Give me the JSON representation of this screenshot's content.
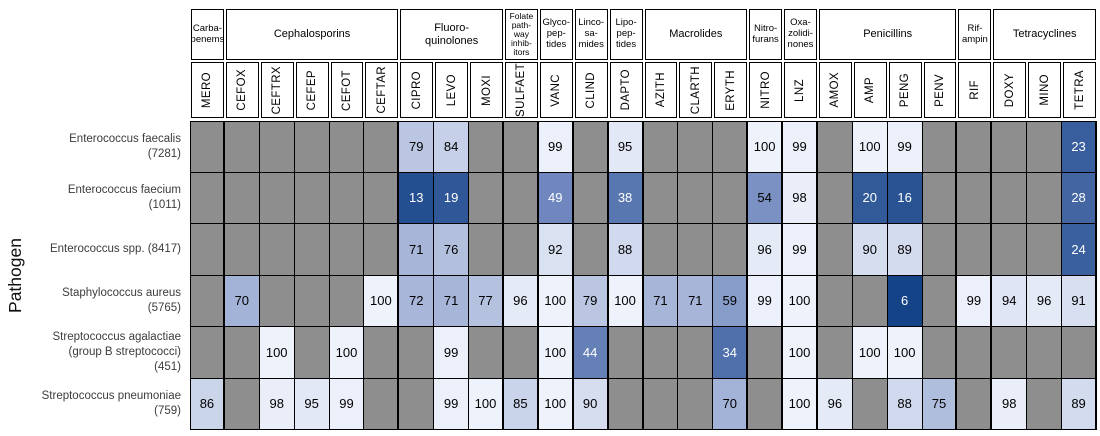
{
  "axis": {
    "y_title": "Pathogen"
  },
  "colors": {
    "no_data": "#8e8e8e",
    "border": "#000000",
    "scale_at_0": "#083a80",
    "scale_at_50": "#7189bf",
    "scale_at_100": "#eef2fb",
    "text_dark": "#000000",
    "text_light": "#ffffff"
  },
  "chart_data": {
    "type": "heatmap",
    "title": "",
    "ylabel": "Pathogen",
    "value_range": [
      0,
      100
    ],
    "legend": "none",
    "col_groups": [
      {
        "lines": [
          "Carba-",
          "penems"
        ],
        "span": 1
      },
      {
        "lines": [
          "Cephalosporins"
        ],
        "span": 5
      },
      {
        "lines": [
          "Fluoro-",
          "quinolones"
        ],
        "span": 3
      },
      {
        "lines": [
          "Folate",
          "path-",
          "way",
          "inhib-",
          "itors"
        ],
        "span": 1
      },
      {
        "lines": [
          "Glyco-",
          "pep-",
          "tides"
        ],
        "span": 1
      },
      {
        "lines": [
          "Linco-",
          "sa-",
          "mides"
        ],
        "span": 1
      },
      {
        "lines": [
          "Lipo-",
          "pep-",
          "tides"
        ],
        "span": 1
      },
      {
        "lines": [
          "Macrolides"
        ],
        "span": 3
      },
      {
        "lines": [
          "Nitro-",
          "furans"
        ],
        "span": 1
      },
      {
        "lines": [
          "Oxa-",
          "zolidi-",
          "nones"
        ],
        "span": 1
      },
      {
        "lines": [
          "Penicillins"
        ],
        "span": 4
      },
      {
        "lines": [
          "Rif-",
          "ampin"
        ],
        "span": 1
      },
      {
        "lines": [
          "Tetracyclines"
        ],
        "span": 3
      }
    ],
    "columns": [
      "MERO",
      "CEFOX",
      "CEFTRX",
      "CEFEP",
      "CEFOT",
      "CEFTAR",
      "CIPRO",
      "LEVO",
      "MOXI",
      "SULFAET",
      "VANC",
      "CLIND",
      "DAPTO",
      "AZITH",
      "CLARTH",
      "ERYTH",
      "NITRO",
      "LNZ",
      "AMOX",
      "AMP",
      "PENG",
      "PENV",
      "RIF",
      "DOXY",
      "MINO",
      "TETRA"
    ],
    "rows": [
      {
        "label_lines": [
          "Enterococcus faecalis",
          "(7281)"
        ],
        "values": [
          null,
          null,
          null,
          null,
          null,
          null,
          79,
          84,
          null,
          null,
          99,
          null,
          95,
          null,
          null,
          null,
          100,
          99,
          null,
          100,
          99,
          null,
          null,
          null,
          null,
          23
        ]
      },
      {
        "label_lines": [
          "Enterococcus faecium",
          "(1011)"
        ],
        "values": [
          null,
          null,
          null,
          null,
          null,
          null,
          13,
          19,
          null,
          null,
          49,
          null,
          38,
          null,
          null,
          null,
          54,
          98,
          null,
          20,
          16,
          null,
          null,
          null,
          null,
          28
        ]
      },
      {
        "label_lines": [
          "Enterococcus spp. (8417)"
        ],
        "values": [
          null,
          null,
          null,
          null,
          null,
          null,
          71,
          76,
          null,
          null,
          92,
          null,
          88,
          null,
          null,
          null,
          96,
          99,
          null,
          90,
          89,
          null,
          null,
          null,
          null,
          24
        ]
      },
      {
        "label_lines": [
          "Staphylococcus aureus",
          "(5765)"
        ],
        "values": [
          null,
          70,
          null,
          null,
          null,
          100,
          72,
          71,
          77,
          96,
          100,
          79,
          100,
          71,
          71,
          59,
          99,
          100,
          null,
          null,
          6,
          null,
          99,
          94,
          96,
          91
        ]
      },
      {
        "label_lines": [
          "Streptococcus agalactiae",
          "(group B streptococci)",
          "(451)"
        ],
        "values": [
          null,
          null,
          100,
          null,
          100,
          null,
          null,
          99,
          null,
          null,
          100,
          44,
          null,
          null,
          null,
          34,
          null,
          100,
          null,
          100,
          100,
          null,
          null,
          null,
          null,
          null
        ]
      },
      {
        "label_lines": [
          "Streptococcus pneumoniae",
          "(759)"
        ],
        "values": [
          86,
          null,
          98,
          95,
          99,
          null,
          null,
          99,
          100,
          85,
          100,
          90,
          null,
          null,
          null,
          70,
          null,
          100,
          96,
          null,
          88,
          75,
          null,
          98,
          null,
          89
        ]
      }
    ]
  }
}
